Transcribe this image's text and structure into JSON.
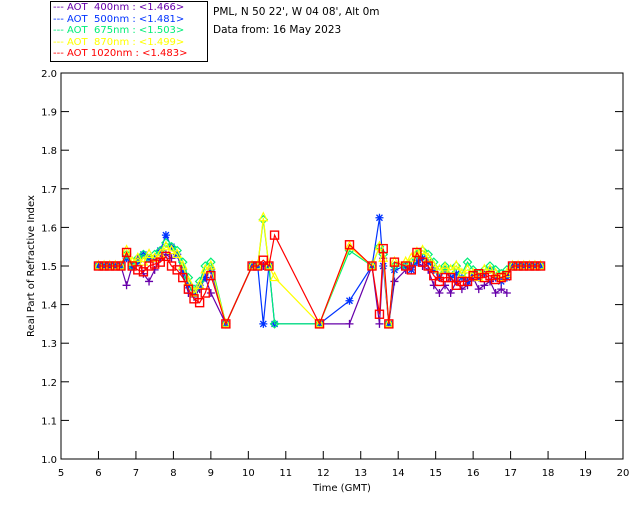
{
  "header": {
    "site_line": "PML, N 50 22', W 04 08', Alt 0m",
    "date_line": "Data from: 16 May 2023"
  },
  "legend": [
    {
      "dash": "---",
      "label": "AOT  400nm : <1.466>",
      "color": "#6600aa"
    },
    {
      "dash": "---",
      "label": "AOT  500nm : <1.481>",
      "color": "#0033ff"
    },
    {
      "dash": "---",
      "label": "AOT  675nm : <1.503>",
      "color": "#00ee77"
    },
    {
      "dash": "---",
      "label": "AOT  870nm : <1.499>",
      "color": "#ffff00"
    },
    {
      "dash": "---",
      "label": "AOT 1020nm : <1.483>",
      "color": "#ff0000"
    }
  ],
  "chart_data": {
    "type": "line",
    "title": "",
    "xlabel": "Time (GMT)",
    "ylabel": "Real Part of Refractive Index",
    "xlim": [
      5,
      20
    ],
    "ylim": [
      1.0,
      2.0
    ],
    "xticks": [
      "5",
      "6",
      "7",
      "8",
      "9",
      "10",
      "11",
      "12",
      "13",
      "14",
      "15",
      "16",
      "17",
      "18",
      "19",
      "20"
    ],
    "yticks": [
      "1.0",
      "1.1",
      "1.2",
      "1.3",
      "1.4",
      "1.5",
      "1.6",
      "1.7",
      "1.8",
      "1.9",
      "2.0"
    ],
    "grid": false,
    "legend_position": "top-left, outside",
    "x": [
      6.0,
      6.15,
      6.3,
      6.45,
      6.6,
      6.75,
      6.9,
      7.05,
      7.2,
      7.35,
      7.5,
      7.65,
      7.8,
      7.95,
      8.1,
      8.25,
      8.4,
      8.55,
      8.7,
      8.85,
      9.0,
      9.4,
      10.1,
      10.25,
      10.4,
      10.55,
      10.7,
      11.9,
      12.7,
      13.3,
      13.5,
      13.6,
      13.75,
      13.9,
      14.2,
      14.35,
      14.5,
      14.65,
      14.8,
      14.95,
      15.1,
      15.25,
      15.4,
      15.55,
      15.7,
      15.85,
      16.0,
      16.15,
      16.3,
      16.45,
      16.6,
      16.75,
      16.9,
      17.05,
      17.2,
      17.35,
      17.5,
      17.65,
      17.8
    ],
    "series": [
      {
        "name": "AOT 400nm",
        "marker": "plus",
        "color": "#6600aa",
        "values": [
          1.5,
          1.5,
          1.5,
          1.5,
          1.5,
          1.45,
          1.5,
          1.52,
          1.48,
          1.46,
          1.49,
          1.52,
          1.53,
          1.52,
          1.53,
          1.48,
          1.43,
          1.42,
          1.44,
          1.47,
          1.43,
          1.35,
          1.5,
          1.5,
          1.5,
          1.5,
          null,
          1.35,
          1.35,
          1.5,
          1.35,
          1.52,
          1.35,
          1.46,
          1.49,
          1.5,
          1.51,
          1.5,
          1.49,
          1.45,
          1.43,
          1.45,
          1.43,
          1.46,
          1.44,
          1.45,
          1.47,
          1.44,
          1.45,
          1.46,
          1.43,
          1.44,
          1.43,
          null,
          null,
          null,
          null,
          null,
          null
        ]
      },
      {
        "name": "AOT 500nm",
        "marker": "asterisk",
        "color": "#0033ff",
        "values": [
          1.5,
          1.5,
          1.5,
          1.5,
          1.5,
          1.52,
          1.5,
          1.51,
          1.53,
          1.52,
          1.52,
          1.54,
          1.58,
          1.55,
          1.53,
          1.49,
          1.45,
          1.43,
          1.45,
          1.47,
          1.49,
          1.35,
          1.5,
          1.5,
          1.35,
          1.5,
          1.35,
          1.35,
          1.41,
          1.5,
          1.625,
          1.5,
          1.35,
          1.49,
          1.5,
          1.49,
          1.51,
          1.52,
          1.51,
          1.49,
          1.47,
          1.49,
          1.47,
          1.48,
          1.47,
          1.46,
          1.48,
          1.47,
          1.48,
          1.49,
          1.47,
          1.46,
          1.47,
          1.5,
          1.5,
          1.5,
          1.5,
          1.5,
          1.5
        ]
      },
      {
        "name": "AOT 675nm",
        "marker": "diamond",
        "color": "#00ee77",
        "values": [
          1.5,
          1.5,
          1.5,
          1.5,
          1.5,
          1.53,
          1.5,
          1.52,
          1.53,
          1.52,
          1.53,
          1.54,
          1.56,
          1.55,
          1.54,
          1.51,
          1.47,
          1.44,
          1.46,
          1.5,
          1.51,
          1.35,
          1.5,
          1.5,
          1.62,
          1.5,
          1.35,
          1.35,
          1.54,
          1.5,
          1.55,
          1.53,
          1.35,
          1.5,
          1.5,
          1.51,
          1.53,
          1.54,
          1.53,
          1.51,
          1.49,
          1.5,
          1.49,
          1.5,
          1.48,
          1.51,
          1.49,
          1.48,
          1.49,
          1.5,
          1.49,
          1.48,
          1.49,
          1.5,
          1.5,
          1.5,
          1.5,
          1.5,
          1.5
        ]
      },
      {
        "name": "AOT 870nm",
        "marker": "triangle",
        "color": "#ffff00",
        "values": [
          1.5,
          1.5,
          1.5,
          1.5,
          1.5,
          1.54,
          1.51,
          1.52,
          1.51,
          1.53,
          1.52,
          1.53,
          1.55,
          1.54,
          1.53,
          1.5,
          1.46,
          1.43,
          1.45,
          1.49,
          1.5,
          1.35,
          1.5,
          1.5,
          1.625,
          1.5,
          1.47,
          1.35,
          1.55,
          1.5,
          1.55,
          1.52,
          1.35,
          1.51,
          1.51,
          1.52,
          1.535,
          1.54,
          1.52,
          1.5,
          1.49,
          1.495,
          1.49,
          1.5,
          1.48,
          1.49,
          1.48,
          1.47,
          1.49,
          1.49,
          1.48,
          1.47,
          1.48,
          1.5,
          1.5,
          1.5,
          1.5,
          1.5,
          1.5
        ]
      },
      {
        "name": "AOT 1020nm",
        "marker": "square",
        "color": "#ff0000",
        "values": [
          1.5,
          1.5,
          1.5,
          1.5,
          1.5,
          1.535,
          1.5,
          1.49,
          1.485,
          1.5,
          1.505,
          1.51,
          1.525,
          1.5,
          1.49,
          1.47,
          1.44,
          1.415,
          1.405,
          1.43,
          1.475,
          1.35,
          1.5,
          1.5,
          1.515,
          1.5,
          1.58,
          1.35,
          1.555,
          1.5,
          1.375,
          1.545,
          1.35,
          1.51,
          1.5,
          1.49,
          1.535,
          1.51,
          1.5,
          1.475,
          1.46,
          1.47,
          1.47,
          1.45,
          1.46,
          1.46,
          1.475,
          1.48,
          1.47,
          1.475,
          1.465,
          1.47,
          1.475,
          1.5,
          1.5,
          1.5,
          1.5,
          1.5,
          1.5
        ]
      }
    ]
  }
}
